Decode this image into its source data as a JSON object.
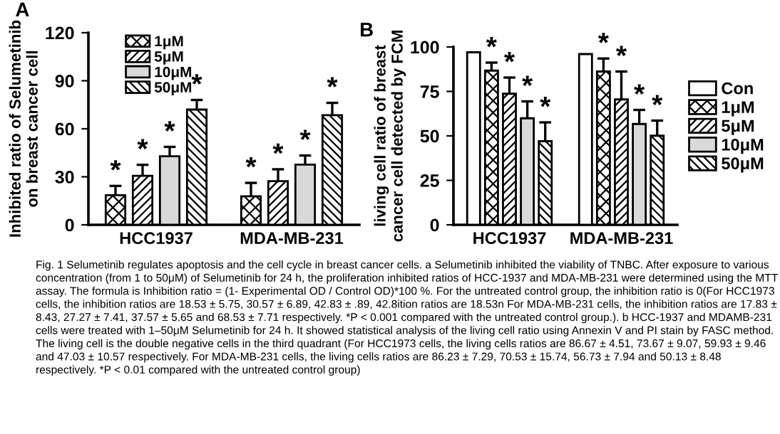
{
  "chart_data": [
    {
      "type": "bar",
      "title": "A",
      "ylabel": "Inhibited ratio of Selumetinib\non breast cancer cell",
      "categories": [
        "HCC1937",
        "MDA-MB-231"
      ],
      "ylim": [
        0,
        120
      ],
      "yticks": [
        0,
        30,
        60,
        90,
        120
      ],
      "grid": false,
      "legend": "top left",
      "series": [
        {
          "name": "1μM",
          "color": "#000000",
          "values": [
            18.5,
            17.8
          ],
          "errors": [
            5.8,
            8.4
          ],
          "value_labels": [
            "*",
            "*"
          ]
        },
        {
          "name": "5μM",
          "color": "#000000",
          "values": [
            30.6,
            27.3
          ],
          "errors": [
            6.9,
            7.4
          ],
          "value_labels": [
            "*",
            "*"
          ]
        },
        {
          "name": "10μM",
          "color": "#d9d9d9",
          "values": [
            42.8,
            37.6
          ],
          "errors": [
            5.9,
            5.7
          ],
          "value_labels": [
            "*",
            "*"
          ]
        },
        {
          "name": "50μM",
          "color": "#000000",
          "values": [
            72,
            68.5
          ],
          "errors": [
            6,
            7.7
          ],
          "value_labels": [
            "*",
            "*"
          ]
        }
      ]
    },
    {
      "type": "bar",
      "title": "B",
      "ylabel": "living cell ratio of breast\ncancer cell detected by FCM",
      "categories": [
        "HCC1937",
        "MDA-MB-231"
      ],
      "ylim": [
        0,
        100
      ],
      "yticks": [
        0,
        25,
        50,
        75,
        100
      ],
      "grid": false,
      "legend": "right",
      "series": [
        {
          "name": "Con",
          "color": "#ffffff",
          "values": [
            97,
            96
          ],
          "value_labels": [
            null,
            null
          ]
        },
        {
          "name": "1μM",
          "color": "#000000",
          "values": [
            86.7,
            86.2
          ],
          "errors": [
            4.5,
            7.3
          ],
          "value_labels": [
            "*",
            "*"
          ]
        },
        {
          "name": "5μM",
          "color": "#000000",
          "values": [
            73.7,
            70.5
          ],
          "errors": [
            9.1,
            15.7
          ],
          "value_labels": [
            "*",
            "*"
          ]
        },
        {
          "name": "10μM",
          "color": "#d9d9d9",
          "values": [
            59.9,
            56.7
          ],
          "errors": [
            9.5,
            7.9
          ],
          "value_labels": [
            "*",
            "*"
          ]
        },
        {
          "name": "50μM",
          "color": "#000000",
          "values": [
            47,
            50.1
          ],
          "errors": [
            10.6,
            8.5
          ],
          "value_labels": [
            "*",
            "*"
          ]
        }
      ],
      "annotations": [
        "Fig. 1 Selumetinib regulates apoptosis and the cell cycle in breast cancer cells. a Selumetinib inhibited the viability of TNBC. After exposure to various concentration (from 1 to 50μM) of Selumetinib for 24 h, the proliferation inhibited ratios of HCC-1937 and MDA-MB-231 were determined using the MTT assay. The formula is Inhibition ratio = (1- Experimental OD / Control OD)*100 %. For the untreated control group, the inhibition ratio is 0(For HCC1973 cells, the inhibition ratios are 18.53 ± 5.75, 30.57 ± 6.89, 42.83 ± .89, 42.8ition ratios are 18.53n For MDA-MB-231 cells, the inhibition ratios are 17.83 ± 8.43, 27.27 ± 7.41, 37.57 ± 5.65 and 68.53 ± 7.71 respectively. *P < 0.001 compared with the untreated control group.). b HCC-1937 and MDAMB-231 cells were treated with 1–50μM Selumetinib for 24 h. It showed statistical analysis of the living cell ratio using Annexin V and PI stain by FASC method. The living cell is the double negative cells in the third quadrant (For HCC1973 cells, the living cells ratios are 86.67 ± 4.51, 73.67 ± 9.07, 59.93 ± 9.46 and 47.03 ± 10.57 respectively. For MDA-MB-231 cells, the living cells ratios are 86.23 ± 7.29, 70.53 ± 15.74, 56.73 ± 7.94 and 50.13 ± 8.48 respectively. *P < 0.01 compared with the untreated control group)"
      ]
    }
  ]
}
